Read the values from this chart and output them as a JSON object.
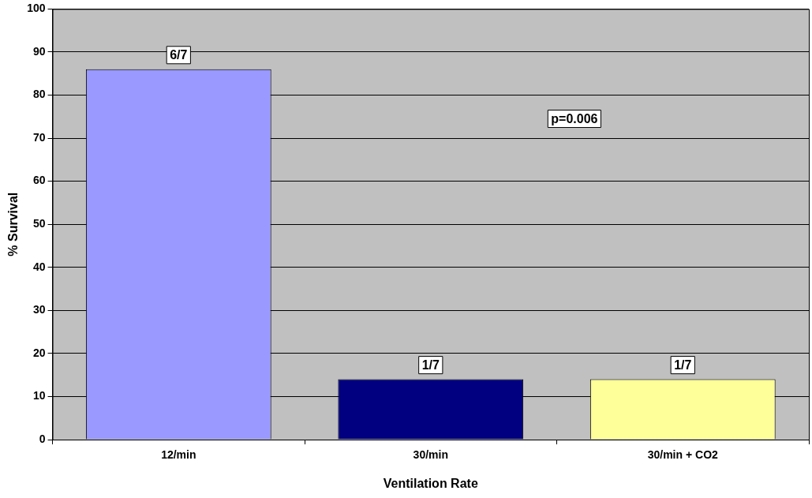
{
  "chart_data": {
    "type": "bar",
    "xlabel": "Ventilation Rate",
    "ylabel": "% Survival",
    "categories": [
      "12/min",
      "30/min",
      "30/min + CO2"
    ],
    "values": [
      86,
      14,
      14
    ],
    "colors": [
      "#9999ff",
      "#000080",
      "#ffff99"
    ],
    "value_labels": [
      "6/7",
      "1/7",
      "1/7"
    ],
    "ylim": [
      0,
      100
    ],
    "yticks": [
      0,
      10,
      20,
      30,
      40,
      50,
      60,
      70,
      80,
      90,
      100
    ],
    "grid": "y",
    "annotations": [
      "p=0.006"
    ]
  }
}
